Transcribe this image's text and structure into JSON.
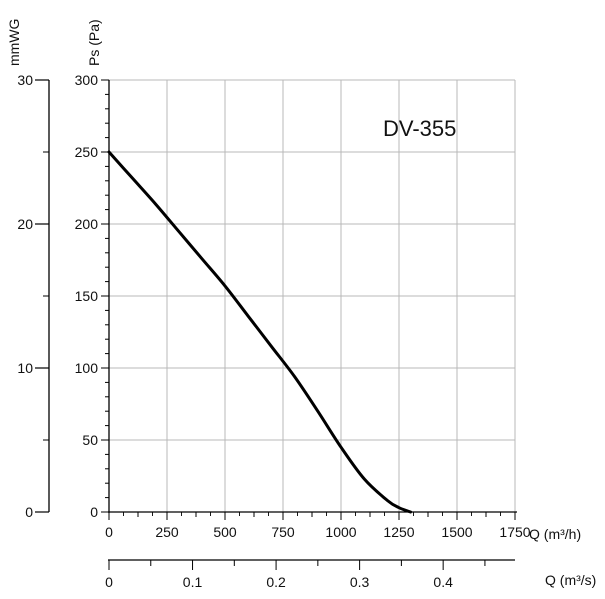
{
  "chart_data": {
    "type": "line",
    "title": "DV-355",
    "series": [
      {
        "x": [
          0,
          100,
          200,
          300,
          400,
          500,
          600,
          700,
          800,
          900,
          1000,
          1100,
          1200,
          1250,
          1300
        ],
        "y": [
          250,
          232,
          214,
          195,
          176,
          157,
          136,
          115,
          94,
          70,
          45,
          23,
          8,
          3,
          0
        ]
      }
    ],
    "axes": {
      "x_primary": {
        "label": "Q (m³/h)",
        "range": [
          0,
          1750
        ],
        "ticks": [
          "0",
          "250",
          "500",
          "750",
          "1000",
          "1250",
          "1500",
          "1750"
        ]
      },
      "x_secondary": {
        "label": "Q (m³/s)",
        "range": [
          0,
          0.486
        ],
        "ticks": [
          "0",
          "0.1",
          "0.2",
          "0.3",
          "0.4"
        ]
      },
      "y_primary": {
        "label": "Ps (Pa)",
        "range": [
          0,
          300
        ],
        "ticks": [
          "0",
          "50",
          "100",
          "150",
          "200",
          "250",
          "300"
        ]
      },
      "y_secondary": {
        "label": "mmWG",
        "range": [
          0,
          30
        ],
        "ticks": [
          "0",
          "10",
          "20",
          "30"
        ]
      }
    },
    "grid": true,
    "legend": "none",
    "colors": {
      "curve": "#000000",
      "grid": "#b8b8b8",
      "axis": "#000000"
    }
  }
}
